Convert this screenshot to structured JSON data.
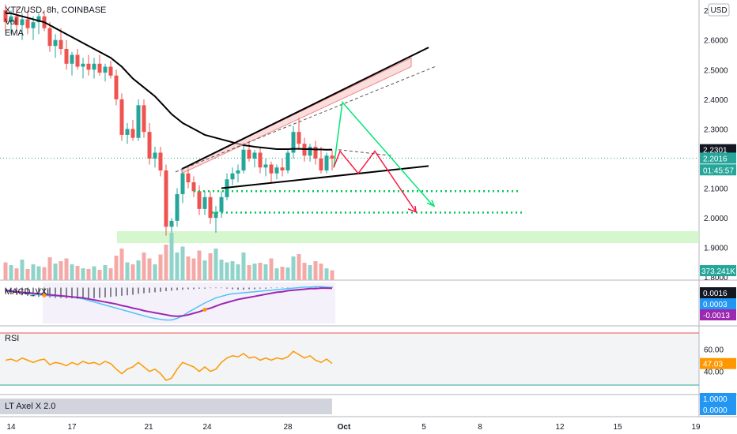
{
  "header": {
    "symbol": "XTZ/USD, 8h, COINBASE",
    "vol_label": "Vol",
    "ema_label": "EMA",
    "currency": "USD"
  },
  "panes": {
    "macd_label": "MACD_VXI",
    "rsi_label": "RSI",
    "lt_label": "LT Axel X 2.0"
  },
  "price_axis": {
    "ticks": [
      "2.7000",
      "2.6000",
      "2.5000",
      "2.4000",
      "2.3000",
      "2.2000",
      "2.1000",
      "2.0000",
      "1.9000",
      "1.8000"
    ],
    "range": [
      1.79,
      2.735
    ],
    "badges": [
      {
        "text": "2.2301",
        "value": 2.2301,
        "color": "#131722"
      },
      {
        "text": "2.2016",
        "value": 2.2016,
        "color": "#26a69a"
      },
      {
        "text": "01:45:57",
        "value": 2.162,
        "color": "#26a69a"
      }
    ],
    "vol_badge": "373.241K"
  },
  "macd_axis": {
    "badges": [
      {
        "text": "0.0016",
        "color": "#131722"
      },
      {
        "text": "0.0003",
        "color": "#2196f3"
      },
      {
        "text": "-0.0013",
        "color": "#9c27b0"
      }
    ]
  },
  "rsi_axis": {
    "ticks": [
      "60.00",
      "40.00"
    ],
    "badge": "47.03"
  },
  "lt_axis": {
    "badges": [
      "1.0000",
      "0.0000"
    ]
  },
  "time_axis": {
    "labels": [
      "14",
      "17",
      "21",
      "24",
      "28",
      "Oct",
      "5",
      "8",
      "12",
      "15",
      "19"
    ]
  },
  "chart_data": {
    "type": "candlestick",
    "ohlc": [
      [
        2.7,
        2.72,
        2.63,
        2.66
      ],
      [
        2.66,
        2.7,
        2.62,
        2.68
      ],
      [
        2.68,
        2.71,
        2.63,
        2.65
      ],
      [
        2.65,
        2.69,
        2.6,
        2.67
      ],
      [
        2.67,
        2.7,
        2.62,
        2.64
      ],
      [
        2.64,
        2.68,
        2.6,
        2.66
      ],
      [
        2.66,
        2.69,
        2.62,
        2.68
      ],
      [
        2.68,
        2.7,
        2.63,
        2.64
      ],
      [
        2.64,
        2.66,
        2.56,
        2.58
      ],
      [
        2.58,
        2.62,
        2.54,
        2.6
      ],
      [
        2.6,
        2.64,
        2.55,
        2.57
      ],
      [
        2.57,
        2.6,
        2.5,
        2.52
      ],
      [
        2.52,
        2.56,
        2.48,
        2.55
      ],
      [
        2.55,
        2.57,
        2.5,
        2.51
      ],
      [
        2.51,
        2.54,
        2.47,
        2.52
      ],
      [
        2.52,
        2.55,
        2.48,
        2.5
      ],
      [
        2.5,
        2.54,
        2.47,
        2.52
      ],
      [
        2.52,
        2.55,
        2.48,
        2.49
      ],
      [
        2.49,
        2.52,
        2.46,
        2.51
      ],
      [
        2.51,
        2.53,
        2.47,
        2.48
      ],
      [
        2.48,
        2.5,
        2.38,
        2.4
      ],
      [
        2.4,
        2.42,
        2.26,
        2.28
      ],
      [
        2.28,
        2.32,
        2.25,
        2.3
      ],
      [
        2.3,
        2.33,
        2.26,
        2.27
      ],
      [
        2.27,
        2.4,
        2.26,
        2.38
      ],
      [
        2.38,
        2.4,
        2.27,
        2.29
      ],
      [
        2.29,
        2.32,
        2.18,
        2.2
      ],
      [
        2.2,
        2.24,
        2.17,
        2.22
      ],
      [
        2.22,
        2.24,
        2.14,
        2.16
      ],
      [
        2.16,
        2.18,
        1.94,
        1.97
      ],
      [
        1.97,
        2.0,
        1.95,
        1.99
      ],
      [
        1.99,
        2.1,
        1.97,
        2.08
      ],
      [
        2.08,
        2.17,
        2.05,
        2.15
      ],
      [
        2.15,
        2.17,
        2.1,
        2.12
      ],
      [
        2.12,
        2.14,
        2.07,
        2.09
      ],
      [
        2.09,
        2.11,
        2.01,
        2.03
      ],
      [
        2.03,
        2.09,
        2.01,
        2.07
      ],
      [
        2.07,
        2.09,
        1.98,
        2.0
      ],
      [
        2.0,
        2.04,
        1.95,
        2.02
      ],
      [
        2.02,
        2.09,
        2.0,
        2.07
      ],
      [
        2.07,
        2.15,
        2.06,
        2.13
      ],
      [
        2.13,
        2.17,
        2.11,
        2.15
      ],
      [
        2.15,
        2.18,
        2.12,
        2.16
      ],
      [
        2.16,
        2.25,
        2.15,
        2.23
      ],
      [
        2.23,
        2.26,
        2.19,
        2.2
      ],
      [
        2.2,
        2.23,
        2.17,
        2.22
      ],
      [
        2.22,
        2.24,
        2.15,
        2.17
      ],
      [
        2.17,
        2.2,
        2.14,
        2.18
      ],
      [
        2.18,
        2.19,
        2.12,
        2.15
      ],
      [
        2.15,
        2.18,
        2.13,
        2.17
      ],
      [
        2.17,
        2.2,
        2.14,
        2.16
      ],
      [
        2.16,
        2.23,
        2.15,
        2.22
      ],
      [
        2.22,
        2.31,
        2.2,
        2.29
      ],
      [
        2.29,
        2.34,
        2.23,
        2.25
      ],
      [
        2.25,
        2.27,
        2.19,
        2.21
      ],
      [
        2.21,
        2.25,
        2.19,
        2.24
      ],
      [
        2.24,
        2.26,
        2.18,
        2.2
      ],
      [
        2.2,
        2.24,
        2.15,
        2.16
      ],
      [
        2.16,
        2.22,
        2.15,
        2.21
      ],
      [
        2.21,
        2.23,
        2.16,
        2.2
      ]
    ],
    "ema": [
      2.69,
      2.69,
      2.685,
      2.68,
      2.675,
      2.67,
      2.665,
      2.66,
      2.65,
      2.64,
      2.63,
      2.62,
      2.61,
      2.6,
      2.59,
      2.58,
      2.57,
      2.56,
      2.55,
      2.54,
      2.525,
      2.51,
      2.49,
      2.47,
      2.455,
      2.44,
      2.425,
      2.41,
      2.39,
      2.37,
      2.35,
      2.335,
      2.32,
      2.31,
      2.3,
      2.29,
      2.28,
      2.275,
      2.27,
      2.265,
      2.26,
      2.255,
      2.25,
      2.245,
      2.243,
      2.24,
      2.238,
      2.236,
      2.234,
      2.232,
      2.232,
      2.232,
      2.233,
      2.233,
      2.232,
      2.232,
      2.231,
      2.231,
      2.23,
      2.2301
    ],
    "volume": [
      45,
      38,
      30,
      52,
      28,
      40,
      35,
      33,
      58,
      42,
      48,
      55,
      40,
      36,
      30,
      28,
      35,
      26,
      38,
      30,
      62,
      80,
      45,
      40,
      50,
      70,
      55,
      40,
      65,
      90,
      120,
      70,
      85,
      60,
      55,
      75,
      50,
      68,
      80,
      52,
      45,
      48,
      40,
      70,
      38,
      42,
      44,
      40,
      55,
      30,
      34,
      32,
      60,
      66,
      44,
      38,
      48,
      42,
      30,
      25
    ],
    "rsi": [
      50,
      51,
      49,
      52,
      50,
      48,
      50,
      51,
      46,
      48,
      47,
      45,
      48,
      46,
      49,
      47,
      48,
      46,
      49,
      47,
      42,
      38,
      42,
      44,
      48,
      44,
      40,
      42,
      38,
      32,
      34,
      42,
      48,
      46,
      44,
      40,
      44,
      40,
      42,
      48,
      52,
      54,
      53,
      56,
      52,
      53,
      50,
      52,
      50,
      52,
      51,
      53,
      58,
      55,
      52,
      54,
      50,
      48,
      51,
      47.03
    ],
    "macd_hist": [
      -0.01,
      -0.012,
      -0.014,
      -0.015,
      -0.016,
      -0.017,
      -0.018,
      -0.018,
      -0.019,
      -0.02,
      -0.02,
      -0.021,
      -0.021,
      -0.022,
      -0.022,
      -0.022,
      -0.021,
      -0.02,
      -0.019,
      -0.018,
      -0.017,
      -0.016,
      -0.015,
      -0.014,
      -0.012,
      -0.011,
      -0.01,
      -0.009,
      -0.008,
      -0.007,
      -0.006,
      -0.005,
      -0.004,
      -0.003,
      -0.003,
      -0.002,
      -0.002,
      -0.001,
      -0.001,
      -0.001,
      -0.002,
      -0.003,
      -0.004,
      -0.004,
      -0.003,
      -0.003,
      -0.002,
      -0.002,
      -0.001,
      -0.001,
      -0.001,
      -0.001,
      0.0,
      0.0,
      0.001,
      0.001,
      0.001,
      0.001,
      0.001,
      0.0016
    ],
    "macd_line": [
      -0.004,
      -0.006,
      -0.008,
      -0.01,
      -0.012,
      -0.013,
      -0.014,
      -0.015,
      -0.016,
      -0.016,
      -0.017,
      -0.017,
      -0.018,
      -0.02,
      -0.022,
      -0.025,
      -0.028,
      -0.031,
      -0.034,
      -0.037,
      -0.04,
      -0.043,
      -0.046,
      -0.049,
      -0.052,
      -0.055,
      -0.058,
      -0.06,
      -0.062,
      -0.063,
      -0.063,
      -0.06,
      -0.055,
      -0.048,
      -0.042,
      -0.036,
      -0.03,
      -0.025,
      -0.02,
      -0.017,
      -0.014,
      -0.012,
      -0.011,
      -0.01,
      -0.009,
      -0.008,
      -0.007,
      -0.006,
      -0.005,
      -0.004,
      -0.003,
      -0.002,
      -0.001,
      0.0,
      0.001,
      0.001,
      0.002,
      0.002,
      0.001,
      0.0003
    ],
    "signal_line": [
      -0.006,
      -0.007,
      -0.008,
      -0.009,
      -0.01,
      -0.011,
      -0.012,
      -0.013,
      -0.014,
      -0.015,
      -0.016,
      -0.017,
      -0.018,
      -0.019,
      -0.02,
      -0.022,
      -0.024,
      -0.026,
      -0.028,
      -0.03,
      -0.032,
      -0.035,
      -0.037,
      -0.04,
      -0.042,
      -0.045,
      -0.047,
      -0.049,
      -0.051,
      -0.053,
      -0.055,
      -0.056,
      -0.055,
      -0.053,
      -0.05,
      -0.047,
      -0.043,
      -0.04,
      -0.036,
      -0.032,
      -0.029,
      -0.026,
      -0.023,
      -0.021,
      -0.019,
      -0.017,
      -0.015,
      -0.013,
      -0.011,
      -0.009,
      -0.008,
      -0.006,
      -0.005,
      -0.004,
      -0.003,
      -0.002,
      -0.002,
      -0.001,
      -0.001,
      -0.0013
    ],
    "drawings": {
      "support_zone": [
        1.915,
        1.955
      ],
      "levels": [
        2.09,
        2.018
      ],
      "ascending_channel_upper": [
        [
          2.165,
          0
        ],
        [
          2.54,
          1
        ]
      ],
      "ascending_channel_lower": [
        [
          2.15,
          0
        ],
        [
          2.51,
          1
        ]
      ],
      "triangle_upper": [
        2.23,
        2.21
      ],
      "triangle_lower": [
        [
          2.1,
          0
        ],
        [
          2.175,
          1
        ]
      ]
    }
  }
}
